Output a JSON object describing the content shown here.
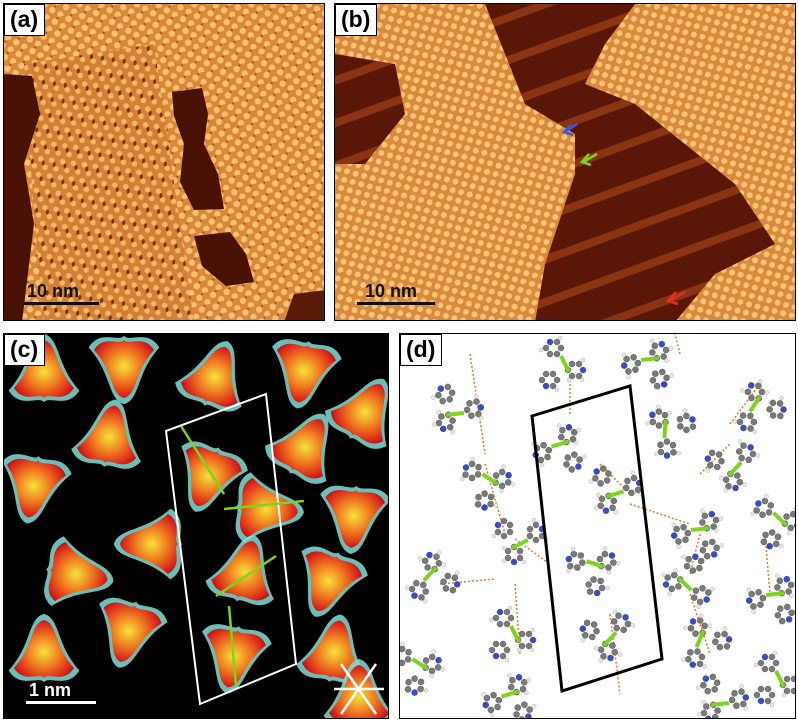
{
  "panels": {
    "a": {
      "label": "(a)",
      "scale": "10 nm"
    },
    "b": {
      "label": "(b)",
      "scale": "10 nm"
    },
    "c": {
      "label": "(c)",
      "scale": "1 nm"
    },
    "d": {
      "label": "(d)"
    }
  },
  "colors": {
    "stm_bright": "#f4b45a",
    "stm_mid": "#d88a3a",
    "stm_dark": "#4a1206",
    "molecule_hot": "#f5e23a",
    "molecule_warm": "#e6301a",
    "contour_cyan": "#7fe0d8",
    "background_dark": "#000000",
    "bond_green": "#7ed321",
    "hbond_orange": "#e07a2a",
    "arrow_blue": "#3a5ad8",
    "arrow_green": "#7ed321",
    "arrow_red": "#e0301a"
  }
}
